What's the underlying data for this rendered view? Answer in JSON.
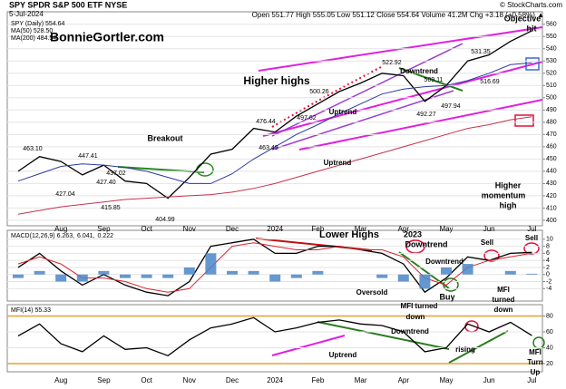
{
  "header": {
    "symbol": "SPY SPDR S&P 500 ETF NYSE",
    "source": "© StockCharts.com",
    "date": "5-Jul-2024",
    "quote": "Open 551.77 High 555.05 Low 551.12 Close 554.64 Volume 41.2M Chg +3.18 (+0.58%) ▲"
  },
  "chart_data": [
    {
      "type": "line",
      "categories": [
        null,
        null,
        "Aug",
        null,
        "Sep",
        null,
        "Oct",
        null,
        "Nov",
        null,
        "Dec",
        null,
        "2024",
        null,
        "Feb",
        null,
        "Mar",
        null,
        "Apr",
        null,
        "May",
        null,
        "Jun",
        null,
        "Jul"
      ],
      "series": [
        {
          "name": "SPY (Daily) 554.64",
          "color": "#000000",
          "values": [
            440,
            452,
            448,
            437,
            445,
            432,
            430,
            418,
            435,
            454,
            458,
            475,
            472,
            485,
            495,
            505,
            512,
            520,
            518,
            497,
            510,
            530,
            535,
            546,
            554.64
          ]
        },
        {
          "name": "MA(50) 528.50",
          "color": "#2b3a9c",
          "values": [
            432,
            438,
            444,
            446,
            445,
            443,
            440,
            435,
            430,
            430,
            438,
            450,
            460,
            470,
            478,
            487,
            495,
            503,
            507,
            509,
            510,
            514,
            520,
            527,
            528.5
          ]
        },
        {
          "name": "MA(200) 484.54",
          "color": "#c8324f",
          "values": [
            405,
            408,
            411,
            413,
            415,
            417,
            418,
            419,
            420,
            421,
            423,
            426,
            430,
            435,
            440,
            445,
            450,
            455,
            460,
            465,
            470,
            475,
            478,
            482,
            484.54
          ]
        }
      ],
      "ylim": [
        397,
        562
      ],
      "yticks": [
        400,
        410,
        420,
        430,
        440,
        450,
        460,
        470,
        480,
        490,
        500,
        510,
        520,
        530,
        540,
        550,
        560
      ],
      "grid": true,
      "annotations": [
        {
          "text": "BonnieGortler.com",
          "color": "#2a8a1f"
        },
        {
          "text": "Higher highs",
          "color": "#e0103a"
        },
        {
          "text": "Uptrend",
          "color": "#9b1fc4"
        },
        {
          "text": "Uptrend",
          "color": "#d21fc4"
        },
        {
          "text": "Downtrend",
          "color": "#2a7a1f"
        },
        {
          "text": "Breakout",
          "color": "#2a8a1f"
        },
        {
          "text": "Objective",
          "color": "#000000"
        },
        {
          "text": "hit",
          "color": "#000000"
        },
        {
          "text": "Higher",
          "color": "#000000"
        },
        {
          "text": "momentum",
          "color": "#000000"
        },
        {
          "text": "high",
          "color": "#000000"
        },
        {
          "text": "463.10",
          "color": "#000000"
        },
        {
          "text": "447.41",
          "color": "#000000"
        },
        {
          "text": "427.04",
          "color": "#000000"
        },
        {
          "text": "437.02",
          "color": "#000000"
        },
        {
          "text": "427.40",
          "color": "#000000"
        },
        {
          "text": "415.85",
          "color": "#000000"
        },
        {
          "text": "404.99",
          "color": "#000000"
        },
        {
          "text": "476.44",
          "color": "#000000"
        },
        {
          "text": "463.49",
          "color": "#000000"
        },
        {
          "text": "500.26",
          "color": "#000000"
        },
        {
          "text": "497.62",
          "color": "#000000"
        },
        {
          "text": "522.92",
          "color": "#000000"
        },
        {
          "text": "509.11",
          "color": "#000000"
        },
        {
          "text": "492.27",
          "color": "#000000"
        },
        {
          "text": "497.94",
          "color": "#000000"
        },
        {
          "text": "516.69",
          "color": "#000000"
        },
        {
          "text": "531.35",
          "color": "#000000"
        }
      ]
    },
    {
      "type": "macd",
      "series": [
        {
          "name": "MACD(12,26,9) 6.263,",
          "color": "#000000",
          "values": [
            2,
            6,
            1,
            -3,
            0,
            -3,
            -5,
            -6,
            -2,
            8,
            9,
            10,
            6,
            6,
            8,
            8,
            7,
            6,
            3,
            -5,
            -1,
            5,
            4,
            6,
            6.263
          ]
        },
        {
          "name": "6.041,",
          "color": "#e0202a",
          "values": [
            3,
            5,
            3,
            -1,
            -1,
            -2,
            -4,
            -5,
            -4,
            2,
            8,
            9,
            8,
            7,
            7,
            8,
            7,
            7,
            5,
            -1,
            -3,
            2,
            4,
            5,
            6.041
          ]
        },
        {
          "name": "0.222",
          "color": "#4a86c8",
          "kind": "bar",
          "values": [
            -1,
            1,
            -2,
            -2,
            1,
            -1,
            -1,
            -1,
            2,
            6,
            1,
            1,
            -2,
            -1,
            1,
            0,
            0,
            -1,
            -2,
            -4,
            2,
            3,
            0,
            1,
            0.222
          ]
        }
      ],
      "ylim": [
        -7,
        12
      ],
      "yticks": [
        -4,
        -2,
        0,
        2,
        4,
        6,
        8,
        10
      ],
      "grid": true,
      "annotations": [
        {
          "text": "Lower Highs",
          "color": "#e0103a"
        },
        {
          "text": "2023",
          "color": "#000000"
        },
        {
          "text": "Downtrend",
          "color": "#000000"
        },
        {
          "text": "Downtrend",
          "color": "#2a7a1f"
        },
        {
          "text": "Sell",
          "color": "#e0103a"
        },
        {
          "text": "Sell",
          "color": "#e0103a"
        },
        {
          "text": "Oversold",
          "color": "#e07a10"
        },
        {
          "text": "Buy",
          "color": "#2a7a1f"
        },
        {
          "text": "MFI",
          "color": "#e0103a"
        },
        {
          "text": "turned",
          "color": "#e0103a"
        },
        {
          "text": "down",
          "color": "#e0103a"
        }
      ]
    },
    {
      "type": "mfi",
      "categories": [
        null,
        null,
        "Aug",
        null,
        "Sep",
        null,
        "Oct",
        null,
        "Nov",
        null,
        "Dec",
        null,
        "2024",
        null,
        "Feb",
        null,
        "Mar",
        null,
        "Apr",
        null,
        "May",
        null,
        "Jun",
        null,
        "Jul"
      ],
      "series": [
        {
          "name": "MFI(14) 55.33",
          "color": "#000000",
          "values": [
            55,
            70,
            45,
            35,
            55,
            38,
            40,
            30,
            50,
            65,
            70,
            78,
            60,
            65,
            72,
            75,
            70,
            68,
            60,
            35,
            40,
            70,
            60,
            72,
            55.33
          ]
        }
      ],
      "ylim": [
        12,
        92
      ],
      "yticks": [
        20,
        40,
        60,
        80
      ],
      "grid": true,
      "bands": [
        20,
        80
      ],
      "band_color": "#e8a030",
      "annotations": [
        {
          "text": "Downtrend",
          "color": "#2a7a1f"
        },
        {
          "text": "Uptrend",
          "color": "#d21fc4"
        },
        {
          "text": "MFI turned",
          "color": "#e0103a"
        },
        {
          "text": "down",
          "color": "#e0103a"
        },
        {
          "text": "rising",
          "color": "#2a7a1f"
        },
        {
          "text": "MFI",
          "color": "#2a7a1f"
        },
        {
          "text": "Turn",
          "color": "#2a7a1f"
        },
        {
          "text": "Up",
          "color": "#2a7a1f"
        }
      ]
    }
  ]
}
